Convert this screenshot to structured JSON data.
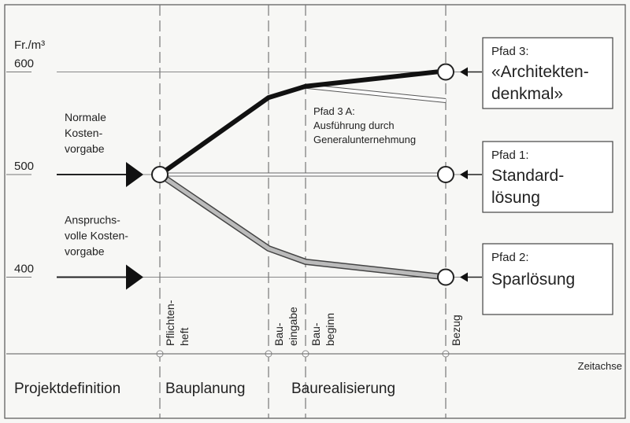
{
  "chart_data": {
    "type": "line",
    "ylabel": "Fr./m³",
    "yticks": [
      "600",
      "500",
      "400"
    ],
    "milestones": [
      "Pflichten-heft",
      "Bau-eingabe",
      "Bau-beginn",
      "Bezug"
    ],
    "phases": [
      "Projektdefinition",
      "Bauplanung",
      "Baurealisierung"
    ],
    "xaxis_label": "Zeitachse",
    "inputs": [
      {
        "lines": [
          "Normale",
          "Kosten-",
          "vorgabe"
        ],
        "value": 500
      },
      {
        "lines": [
          "Anspruchs-",
          "volle Kosten-",
          "vorgabe"
        ],
        "value": 400
      }
    ],
    "series": [
      {
        "name": "Pfad 3",
        "values": [
          500,
          575,
          586,
          601
        ],
        "style": "bold-black"
      },
      {
        "name": "Pfad 3 A",
        "from_milestone": 2,
        "values": [
          586,
          572
        ],
        "style": "double-outline"
      },
      {
        "name": "Pfad 1",
        "values": [
          500,
          500,
          500,
          500
        ],
        "style": "double-outline"
      },
      {
        "name": "Pfad 2",
        "values": [
          500,
          428,
          415,
          400
        ],
        "style": "gray-outline"
      }
    ],
    "annotations": {
      "pfad3a": [
        "Pfad 3 A:",
        "Ausführung durch",
        "Generalunternehmung"
      ]
    },
    "boxes": [
      {
        "title": "Pfad 3:",
        "lines": [
          "«Architekten-",
          "denkmal»"
        ],
        "value": 600
      },
      {
        "title": "Pfad 1:",
        "lines": [
          "Standard-",
          "lösung"
        ],
        "value": 500
      },
      {
        "title": "Pfad 2:",
        "lines": [
          "Sparlösung"
        ],
        "value": 400
      }
    ]
  }
}
